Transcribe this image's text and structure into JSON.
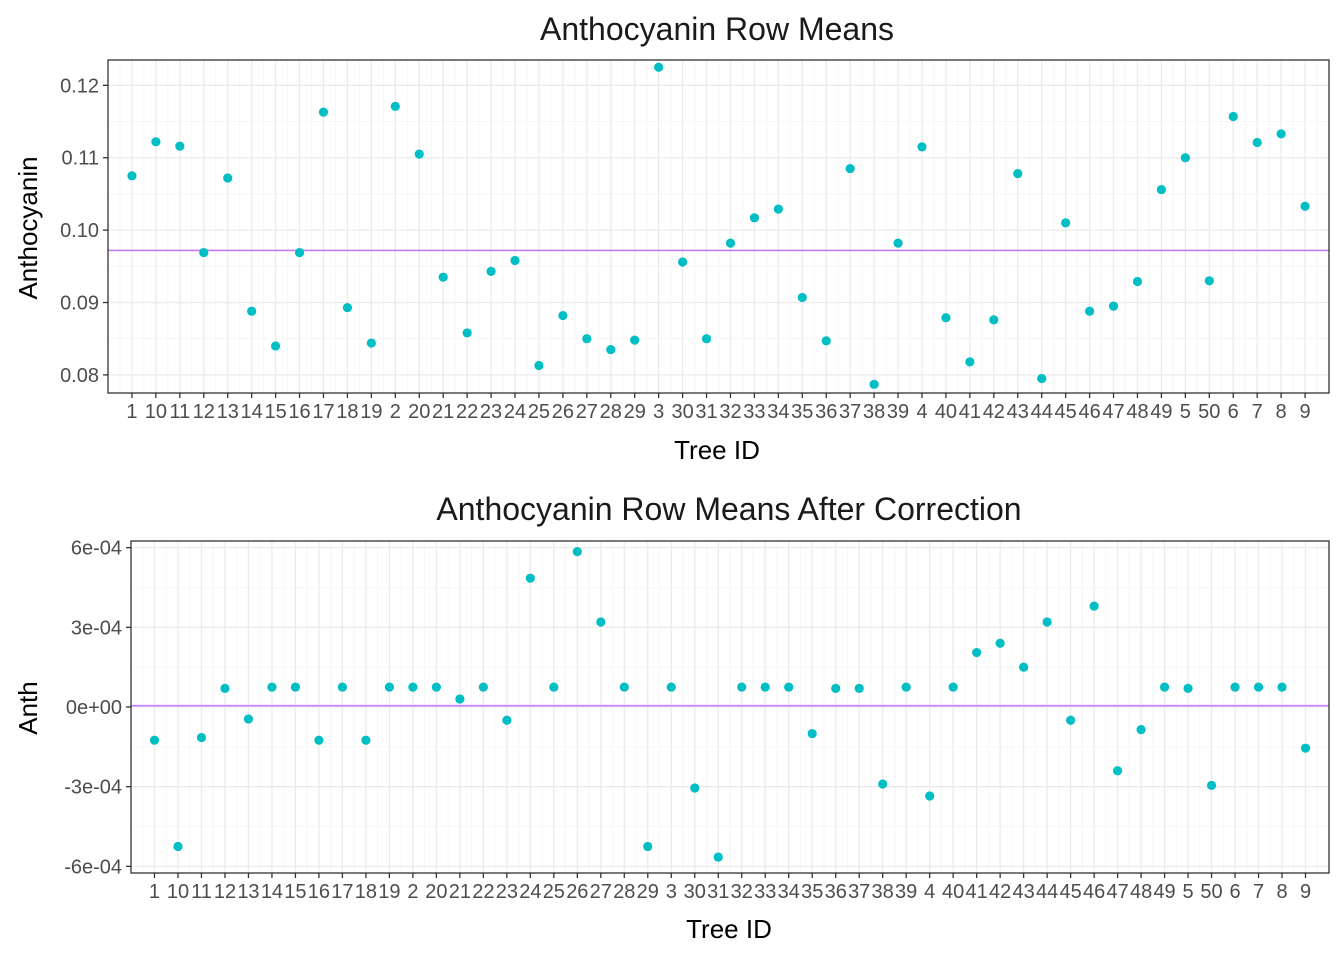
{
  "chart_data": [
    {
      "type": "scatter",
      "title": "Anthocyanin Row Means",
      "xlabel": "Tree ID",
      "ylabel": "Anthocyanin",
      "categories": [
        "1",
        "10",
        "11",
        "12",
        "13",
        "14",
        "15",
        "16",
        "17",
        "18",
        "19",
        "2",
        "20",
        "21",
        "22",
        "23",
        "24",
        "25",
        "26",
        "27",
        "28",
        "29",
        "3",
        "30",
        "31",
        "32",
        "33",
        "34",
        "35",
        "36",
        "37",
        "38",
        "39",
        "4",
        "40",
        "41",
        "42",
        "43",
        "44",
        "45",
        "46",
        "47",
        "48",
        "49",
        "5",
        "50",
        "6",
        "7",
        "8",
        "9"
      ],
      "values": [
        0.1075,
        0.1122,
        0.1116,
        0.0969,
        0.1072,
        0.0888,
        0.084,
        0.0969,
        0.1163,
        0.0893,
        0.0844,
        0.1171,
        0.1105,
        0.0935,
        0.0858,
        0.0943,
        0.0958,
        0.0813,
        0.0882,
        0.085,
        0.0835,
        0.0848,
        0.1225,
        0.0956,
        0.085,
        0.0982,
        0.1017,
        0.1029,
        0.0907,
        0.0847,
        0.1085,
        0.0787,
        0.0982,
        0.1115,
        0.0879,
        0.0818,
        0.0876,
        0.1078,
        0.0795,
        0.101,
        0.0888,
        0.0895,
        0.0929,
        0.1056,
        0.11,
        0.093,
        0.1157,
        0.1121,
        0.1133,
        0.1033
      ],
      "hline": 0.0972,
      "ylim": [
        0.0775,
        0.1235
      ],
      "yticks": [
        0.08,
        0.09,
        0.1,
        0.11,
        0.12
      ],
      "ytick_labels": [
        "0.08",
        "0.09",
        "0.10",
        "0.11",
        "0.12"
      ],
      "point_color": "#00bfc4",
      "line_color": "#c77cff",
      "grid": true,
      "legend": "none"
    },
    {
      "type": "scatter",
      "title": "Anthocyanin Row Means After Correction",
      "xlabel": "Tree ID",
      "ylabel": "Anth",
      "categories": [
        "1",
        "10",
        "11",
        "12",
        "13",
        "14",
        "15",
        "16",
        "17",
        "18",
        "19",
        "2",
        "20",
        "21",
        "22",
        "23",
        "24",
        "25",
        "26",
        "27",
        "28",
        "29",
        "3",
        "30",
        "31",
        "32",
        "33",
        "34",
        "35",
        "36",
        "37",
        "38",
        "39",
        "4",
        "40",
        "41",
        "42",
        "43",
        "44",
        "45",
        "46",
        "47",
        "48",
        "49",
        "5",
        "50",
        "6",
        "7",
        "8",
        "9"
      ],
      "values": [
        -0.000125,
        -0.000525,
        -0.000115,
        7e-05,
        -4.5e-05,
        7.5e-05,
        7.5e-05,
        -0.000125,
        7.5e-05,
        -0.000125,
        7.5e-05,
        7.5e-05,
        7.5e-05,
        3e-05,
        7.5e-05,
        -5e-05,
        0.000485,
        7.5e-05,
        0.000585,
        0.00032,
        7.5e-05,
        -0.000525,
        7.5e-05,
        -0.000305,
        -0.000565,
        7.5e-05,
        7.5e-05,
        7.5e-05,
        -0.0001,
        7e-05,
        7e-05,
        -0.00029,
        7.5e-05,
        -0.000335,
        7.5e-05,
        0.000205,
        0.00024,
        0.00015,
        0.00032,
        -5e-05,
        0.00038,
        -0.00024,
        -8.5e-05,
        7.5e-05,
        7e-05,
        -0.000295,
        7.5e-05,
        7.5e-05,
        7.5e-05,
        -0.000155
      ],
      "hline": 5e-06,
      "ylim": [
        -0.000625,
        0.000625
      ],
      "yticks": [
        -0.0006,
        -0.0003,
        0,
        0.0003,
        0.0006
      ],
      "ytick_labels": [
        "-6e-04",
        "-3e-04",
        "0e+00",
        "3e-04",
        "6e-04"
      ],
      "point_color": "#00bfc4",
      "line_color": "#c77cff",
      "grid": true,
      "legend": "none"
    }
  ]
}
